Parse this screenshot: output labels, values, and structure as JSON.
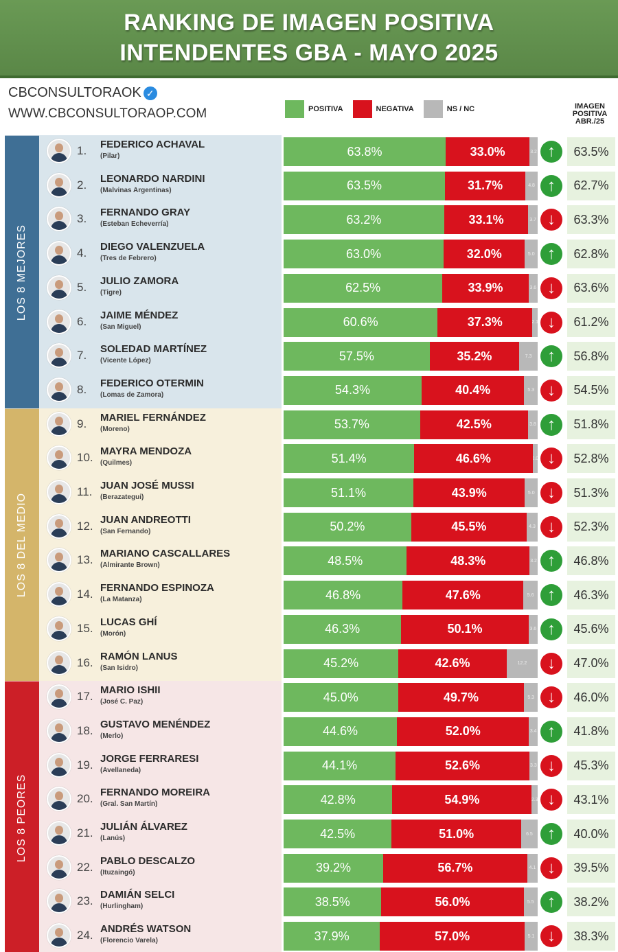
{
  "header": {
    "title_line1": "RANKING DE IMAGEN POSITIVA",
    "title_line2": "INTENDENTES GBA - MAYO 2025"
  },
  "brand": {
    "handle": "CBCONSULTORAOK",
    "website": "WWW.CBCONSULTORAOP.COM"
  },
  "legend": {
    "positive": "POSITIVA",
    "negative": "NEGATIVA",
    "nsnc": "NS / NC"
  },
  "previous_header": [
    "IMAGEN",
    "POSITIVA",
    "ABR./25"
  ],
  "groups": [
    {
      "label": "LOS 8 MEJORES",
      "color": "#3f6f95",
      "panel": "#d9e5ec"
    },
    {
      "label": "LOS 8 DEL MEDIO",
      "color": "#d4b56a",
      "panel": "#f7f0dc"
    },
    {
      "label": "LOS 8 PEORES",
      "color": "#cc1f27",
      "panel": "#f6e6e6"
    }
  ],
  "colors": {
    "positive": "#6eb85e",
    "negative": "#d8121d",
    "nsnc": "#b8b8b8",
    "up": "#2e9e38",
    "down": "#d8121d"
  },
  "chart_data": {
    "type": "bar",
    "stacked": true,
    "orientation": "horizontal",
    "series_names": [
      "POSITIVA",
      "NEGATIVA",
      "NS / NC"
    ],
    "rows": [
      {
        "rank": "1.",
        "name": "FEDERICO ACHAVAL",
        "municipality": "(Pilar)",
        "positive": "63.8%",
        "negative": "33.0%",
        "nsnc": "3.2",
        "trend": "up",
        "previous": "63.5%"
      },
      {
        "rank": "2.",
        "name": "LEONARDO NARDINI",
        "municipality": "(Malvinas Argentinas)",
        "positive": "63.5%",
        "negative": "31.7%",
        "nsnc": "4.8",
        "trend": "up",
        "previous": "62.7%"
      },
      {
        "rank": "3.",
        "name": "FERNANDO GRAY",
        "municipality": "(Esteban Echeverría)",
        "positive": "63.2%",
        "negative": "33.1%",
        "nsnc": "3.7",
        "trend": "down",
        "previous": "63.3%"
      },
      {
        "rank": "4.",
        "name": "DIEGO VALENZUELA",
        "municipality": "(Tres de Febrero)",
        "positive": "63.0%",
        "negative": "32.0%",
        "nsnc": "5.0",
        "trend": "up",
        "previous": "62.8%"
      },
      {
        "rank": "5.",
        "name": "JULIO ZAMORA",
        "municipality": "(Tigre)",
        "positive": "62.5%",
        "negative": "33.9%",
        "nsnc": "3.6",
        "trend": "down",
        "previous": "63.6%"
      },
      {
        "rank": "6.",
        "name": "JAIME MÉNDEZ",
        "municipality": "(San Miguel)",
        "positive": "60.6%",
        "negative": "37.3%",
        "nsnc": "2.1",
        "trend": "down",
        "previous": "61.2%"
      },
      {
        "rank": "7.",
        "name": "SOLEDAD MARTÍNEZ",
        "municipality": "(Vicente López)",
        "positive": "57.5%",
        "negative": "35.2%",
        "nsnc": "7.3",
        "trend": "up",
        "previous": "56.8%"
      },
      {
        "rank": "8.",
        "name": "FEDERICO OTERMIN",
        "municipality": "(Lomas de Zamora)",
        "positive": "54.3%",
        "negative": "40.4%",
        "nsnc": "5.3",
        "trend": "down",
        "previous": "54.5%"
      },
      {
        "rank": "9.",
        "name": "MARIEL FERNÁNDEZ",
        "municipality": "(Moreno)",
        "positive": "53.7%",
        "negative": "42.5%",
        "nsnc": "3.8",
        "trend": "up",
        "previous": "51.8%"
      },
      {
        "rank": "10.",
        "name": "MAYRA MENDOZA",
        "municipality": "(Quilmes)",
        "positive": "51.4%",
        "negative": "46.6%",
        "nsnc": "2.0",
        "trend": "down",
        "previous": "52.8%"
      },
      {
        "rank": "11.",
        "name": "JUAN JOSÉ MUSSI",
        "municipality": "(Berazategui)",
        "positive": "51.1%",
        "negative": "43.9%",
        "nsnc": "5.0",
        "trend": "down",
        "previous": "51.3%"
      },
      {
        "rank": "12.",
        "name": "JUAN ANDREOTTI",
        "municipality": "(San Fernando)",
        "positive": "50.2%",
        "negative": "45.5%",
        "nsnc": "4.3",
        "trend": "down",
        "previous": "52.3%"
      },
      {
        "rank": "13.",
        "name": "MARIANO CASCALLARES",
        "municipality": "(Almirante Brown)",
        "positive": "48.5%",
        "negative": "48.3%",
        "nsnc": "3.2",
        "trend": "up",
        "previous": "46.8%"
      },
      {
        "rank": "14.",
        "name": "FERNANDO ESPINOZA",
        "municipality": "(La Matanza)",
        "positive": "46.8%",
        "negative": "47.6%",
        "nsnc": "5.6",
        "trend": "up",
        "previous": "46.3%"
      },
      {
        "rank": "15.",
        "name": "LUCAS GHÍ",
        "municipality": "(Morón)",
        "positive": "46.3%",
        "negative": "50.1%",
        "nsnc": "3.6",
        "trend": "up",
        "previous": "45.6%"
      },
      {
        "rank": "16.",
        "name": "RAMÓN LANUS",
        "municipality": "(San Isidro)",
        "positive": "45.2%",
        "negative": "42.6%",
        "nsnc": "12.2",
        "trend": "down",
        "previous": "47.0%"
      },
      {
        "rank": "17.",
        "name": "MARIO ISHII",
        "municipality": "(José C. Paz)",
        "positive": "45.0%",
        "negative": "49.7%",
        "nsnc": "5.3",
        "trend": "down",
        "previous": "46.0%"
      },
      {
        "rank": "18.",
        "name": "GUSTAVO MENÉNDEZ",
        "municipality": "(Merlo)",
        "positive": "44.6%",
        "negative": "52.0%",
        "nsnc": "3.4",
        "trend": "up",
        "previous": "41.8%"
      },
      {
        "rank": "19.",
        "name": "JORGE FERRARESI",
        "municipality": "(Avellaneda)",
        "positive": "44.1%",
        "negative": "52.6%",
        "nsnc": "3.3",
        "trend": "down",
        "previous": "45.3%"
      },
      {
        "rank": "20.",
        "name": "FERNANDO MOREIRA",
        "municipality": "(Gral. San Martín)",
        "positive": "42.8%",
        "negative": "54.9%",
        "nsnc": "2.3",
        "trend": "down",
        "previous": "43.1%"
      },
      {
        "rank": "21.",
        "name": "JULIÁN ÁLVAREZ",
        "municipality": "(Lanús)",
        "positive": "42.5%",
        "negative": "51.0%",
        "nsnc": "6.5",
        "trend": "up",
        "previous": "40.0%"
      },
      {
        "rank": "22.",
        "name": "PABLO DESCALZO",
        "municipality": "(Ituzaingó)",
        "positive": "39.2%",
        "negative": "56.7%",
        "nsnc": "4.1",
        "trend": "down",
        "previous": "39.5%"
      },
      {
        "rank": "23.",
        "name": "DAMIÁN SELCI",
        "municipality": "(Hurlingham)",
        "positive": "38.5%",
        "negative": "56.0%",
        "nsnc": "5.5",
        "trend": "up",
        "previous": "38.2%"
      },
      {
        "rank": "24.",
        "name": "ANDRÉS WATSON",
        "municipality": "(Florencio Varela)",
        "positive": "37.9%",
        "negative": "57.0%",
        "nsnc": "5.1",
        "trend": "down",
        "previous": "38.3%"
      }
    ]
  }
}
